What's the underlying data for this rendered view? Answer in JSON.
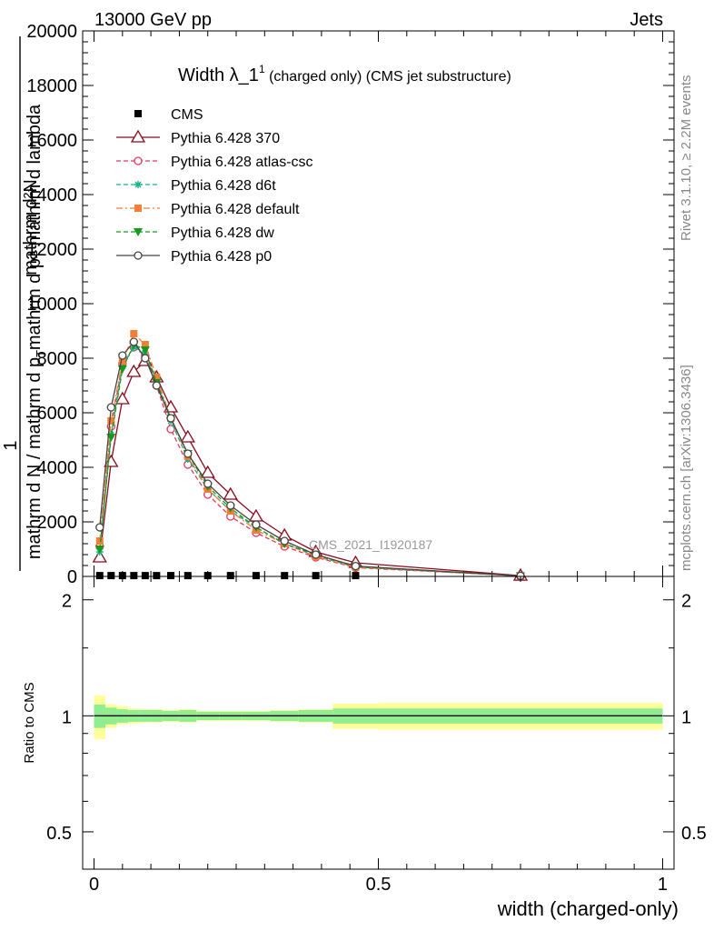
{
  "header": {
    "left": "13000 GeV pp",
    "right": "Jets"
  },
  "title": {
    "main": "Width λ_1",
    "sup": "1",
    "suffix": " (charged only) (CMS jet substructure)"
  },
  "y_label": {
    "line1": "mathrm d²N",
    "line2": "mathrm d p",
    "line2_sub": "T",
    "line2_rest": " mathrm d lambda",
    "num": "1",
    "den": "mathrm d N / mathrm d p",
    "den_sub": "T"
  },
  "side_text": {
    "rivet": "Rivet 3.1.10, ≥ 2.2M events",
    "mcplots": "mcplots.cern.ch [arXiv:1306.3436]"
  },
  "watermark": "CMS_2021_I1920187",
  "ratio_ylabel": "Ratio to CMS",
  "xlabel": "width (charged-only)",
  "chart_data": [
    {
      "type": "line",
      "panel": "main",
      "title": "Width λ_1^1 (charged only) (CMS jet substructure)",
      "xlabel": "width (charged-only)",
      "xlim": [
        -0.02,
        1.02
      ],
      "ylim": [
        0,
        20000
      ],
      "y_ticks": [
        0,
        2000,
        4000,
        6000,
        8000,
        10000,
        12000,
        14000,
        16000,
        18000,
        20000
      ],
      "y_tick_labels": [
        "0",
        "2000",
        "4000",
        "6000",
        "8000",
        "10000",
        "12000",
        "14000",
        "16000",
        "18000",
        "20000"
      ],
      "x": [
        0.01,
        0.03,
        0.05,
        0.07,
        0.09,
        0.11,
        0.135,
        0.165,
        0.2,
        0.24,
        0.285,
        0.335,
        0.39,
        0.46,
        0.75
      ],
      "legend_position": "top-left",
      "series": [
        {
          "name": "CMS",
          "color": "#000000",
          "marker": "square",
          "line": "none",
          "values": [
            30,
            30,
            30,
            30,
            30,
            30,
            30,
            30,
            30,
            30,
            30,
            30,
            30,
            30,
            0
          ]
        },
        {
          "name": "Pythia 6.428 370",
          "color": "#8b0a1e",
          "marker": "triangle-open",
          "line": "solid",
          "values": [
            700,
            4200,
            6500,
            7500,
            7900,
            7300,
            6200,
            5100,
            3800,
            3000,
            2200,
            1500,
            900,
            500,
            30
          ]
        },
        {
          "name": "Pythia 6.428 atlas-csc",
          "color": "#e8365e",
          "marker": "circle-open",
          "line": "dashed",
          "values": [
            1100,
            5500,
            7800,
            8400,
            8100,
            7000,
            5400,
            4100,
            3000,
            2200,
            1600,
            1100,
            700,
            320,
            20
          ]
        },
        {
          "name": "Pythia 6.428 d6t",
          "color": "#14b38a",
          "marker": "star",
          "line": "dashed",
          "values": [
            900,
            5200,
            7700,
            8400,
            8200,
            7200,
            5700,
            4300,
            3200,
            2400,
            1800,
            1200,
            750,
            340,
            20
          ]
        },
        {
          "name": "Pythia 6.428 default",
          "color": "#f47e35",
          "marker": "square",
          "line": "dashdot",
          "values": [
            1300,
            5700,
            7900,
            8900,
            8500,
            7300,
            5800,
            4400,
            3200,
            2400,
            1700,
            1200,
            730,
            340,
            20
          ]
        },
        {
          "name": "Pythia 6.428 dw",
          "color": "#17991c",
          "marker": "triangle-down",
          "line": "dashed",
          "values": [
            1000,
            5100,
            7600,
            8500,
            8300,
            7100,
            5800,
            4500,
            3300,
            2500,
            1800,
            1200,
            800,
            360,
            20
          ]
        },
        {
          "name": "Pythia 6.428 p0",
          "color": "#444444",
          "marker": "circle-open",
          "line": "solid",
          "values": [
            1800,
            6200,
            8100,
            8600,
            8000,
            7000,
            5800,
            4500,
            3400,
            2600,
            1900,
            1300,
            800,
            380,
            20
          ]
        }
      ]
    },
    {
      "type": "area",
      "panel": "ratio",
      "ylabel": "Ratio to CMS",
      "xlabel": "width (charged-only)",
      "xlim": [
        -0.02,
        1.02
      ],
      "ylim": [
        0.4,
        2.3
      ],
      "y_ticks": [
        0.5,
        1,
        2
      ],
      "y_tick_labels": [
        "0.5",
        "1",
        "2"
      ],
      "x_ticks": [
        0,
        0.5,
        1
      ],
      "x_tick_labels": [
        "0",
        "0.5",
        "1"
      ],
      "bins": [
        0,
        0.02,
        0.04,
        0.06,
        0.08,
        0.1,
        0.12,
        0.15,
        0.18,
        0.22,
        0.26,
        0.31,
        0.36,
        0.42,
        0.5,
        1.0
      ],
      "reference": 1,
      "inner_band": {
        "name": "stat",
        "color": "#90ee90",
        "lo": [
          0.93,
          0.95,
          0.96,
          0.965,
          0.965,
          0.965,
          0.97,
          0.965,
          0.975,
          0.975,
          0.975,
          0.97,
          0.965,
          0.955,
          0.955
        ],
        "hi": [
          1.07,
          1.05,
          1.04,
          1.035,
          1.035,
          1.035,
          1.03,
          1.035,
          1.025,
          1.025,
          1.025,
          1.03,
          1.035,
          1.045,
          1.045
        ]
      },
      "outer_band": {
        "name": "total",
        "color": "#ffff99",
        "lo": [
          0.87,
          0.93,
          0.95,
          0.955,
          0.96,
          0.96,
          0.965,
          0.96,
          0.97,
          0.97,
          0.97,
          0.965,
          0.96,
          0.925,
          0.92
        ],
        "hi": [
          1.13,
          1.07,
          1.06,
          1.045,
          1.04,
          1.04,
          1.035,
          1.04,
          1.03,
          1.03,
          1.03,
          1.035,
          1.04,
          1.075,
          1.08
        ]
      }
    }
  ]
}
